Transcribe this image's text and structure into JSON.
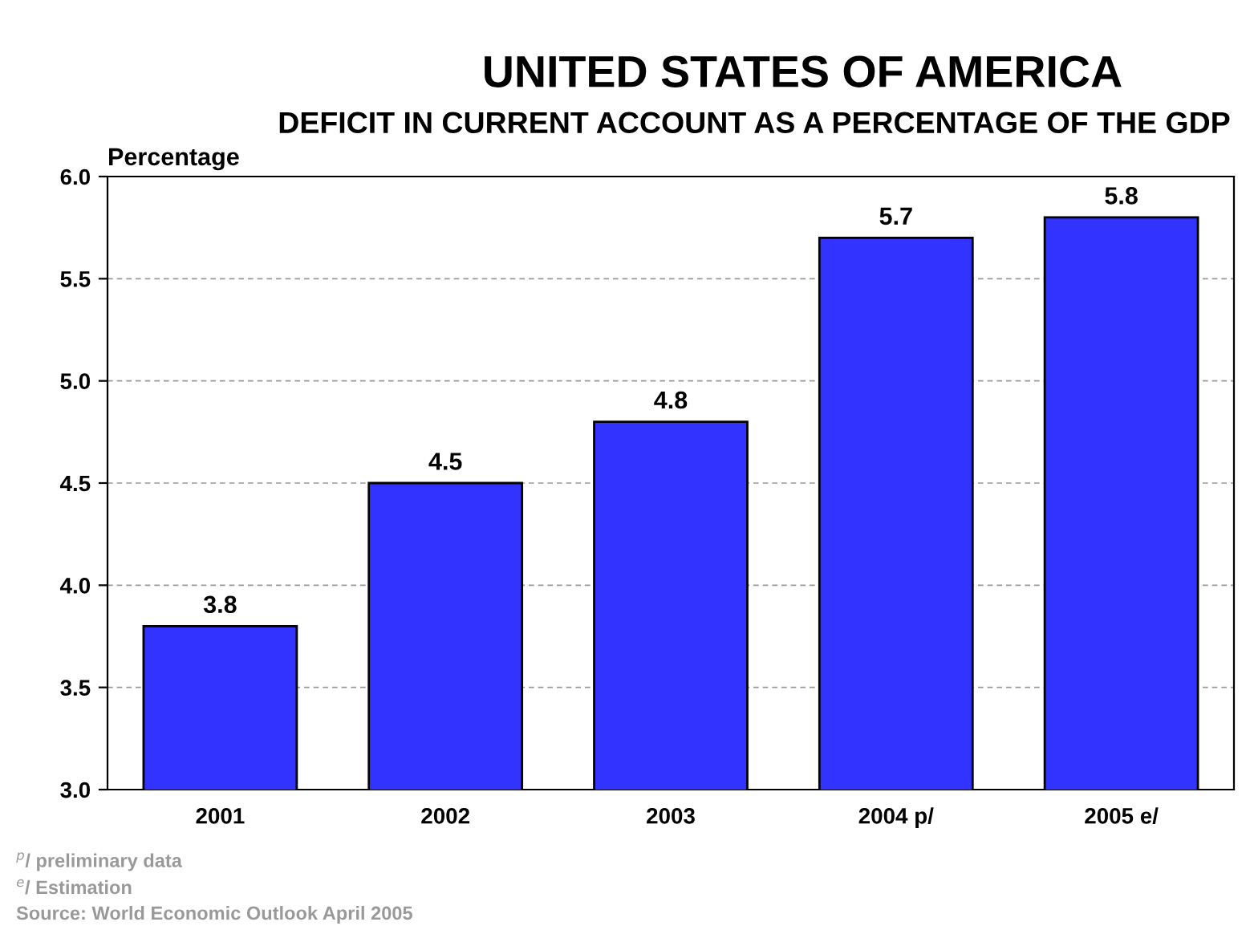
{
  "chart_data": {
    "type": "bar",
    "title": "UNITED STATES OF AMERICA",
    "subtitle": "DEFICIT IN CURRENT ACCOUNT AS A PERCENTAGE OF THE GDP",
    "ylabel": "Percentage",
    "categories": [
      "2001",
      "2002",
      "2003",
      "2004 p/",
      "2005 e/"
    ],
    "values": [
      3.8,
      4.5,
      4.8,
      5.7,
      5.8
    ],
    "color": "#3333ff",
    "ylim": [
      3.0,
      6.0
    ],
    "yticks": [
      {
        "value": 3.0,
        "label": "3.0"
      },
      {
        "value": 3.5,
        "label": "3.5"
      },
      {
        "value": 4.0,
        "label": "4.0"
      },
      {
        "value": 4.5,
        "label": "4.5"
      },
      {
        "value": 5.0,
        "label": "5.0"
      },
      {
        "value": 5.5,
        "label": "5.5"
      },
      {
        "value": 6.0,
        "label": "6.0"
      }
    ],
    "grid": "y",
    "data_labels": true,
    "annotations": [
      "$^{p}$/ preliminary data",
      "$^{e}$/ Estimation",
      "Source: World Economic Outlook April 2005"
    ]
  }
}
